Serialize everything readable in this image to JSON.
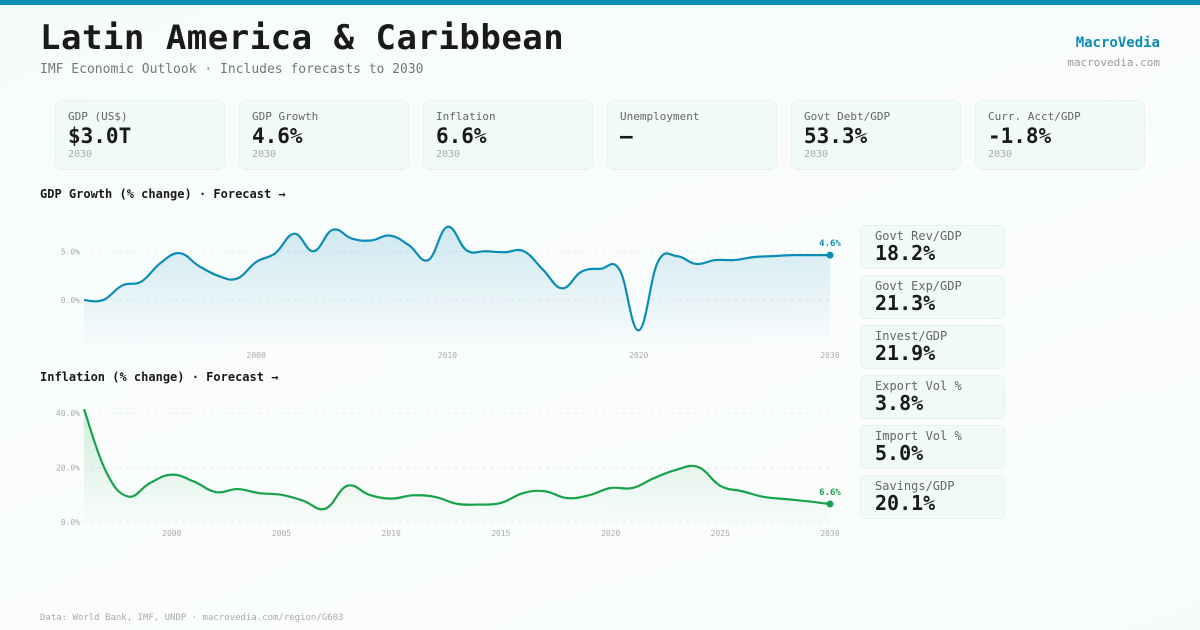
{
  "header": {
    "title": "Latin America & Caribbean",
    "subtitle": "IMF Economic Outlook · Includes forecasts to 2030",
    "brand": "MacroVedia",
    "brand_url": "macrovedia.com"
  },
  "kpis": [
    {
      "label": "GDP (US$)",
      "value": "$3.0T",
      "year": "2030"
    },
    {
      "label": "GDP Growth",
      "value": "4.6%",
      "year": "2030"
    },
    {
      "label": "Inflation",
      "value": "6.6%",
      "year": "2030"
    },
    {
      "label": "Unemployment",
      "value": "—",
      "year": ""
    },
    {
      "label": "Govt Debt/GDP",
      "value": "53.3%",
      "year": "2030"
    },
    {
      "label": "Curr. Acct/GDP",
      "value": "-1.8%",
      "year": "2030"
    }
  ],
  "side": [
    {
      "label": "Govt Rev/GDP",
      "value": "18.2%"
    },
    {
      "label": "Govt Exp/GDP",
      "value": "21.3%"
    },
    {
      "label": "Invest/GDP",
      "value": "21.9%"
    },
    {
      "label": "Export Vol %",
      "value": "3.8%"
    },
    {
      "label": "Import Vol %",
      "value": "5.0%"
    },
    {
      "label": "Savings/GDP",
      "value": "20.1%"
    }
  ],
  "footer": "Data: World Bank, IMF, UNDP · macrovedia.com/region/G603",
  "chart_data": [
    {
      "type": "area",
      "title": "GDP Growth (% change) · Forecast →",
      "color": "#0a8db5",
      "x_start": 1991,
      "values": [
        0.0,
        0.0,
        1.5,
        1.9,
        3.8,
        4.8,
        3.5,
        2.5,
        2.2,
        3.9,
        4.8,
        6.8,
        5.0,
        7.2,
        6.3,
        6.1,
        6.6,
        5.6,
        4.1,
        7.5,
        5.1,
        5.0,
        4.9,
        5.0,
        3.1,
        1.2,
        2.9,
        3.2,
        3.1,
        -3.1,
        3.9,
        4.5,
        3.7,
        4.1,
        4.1,
        4.4,
        4.5,
        4.6,
        4.6,
        4.6
      ],
      "ylim": [
        -4.6,
        8.2
      ],
      "yticks": [
        0,
        5
      ],
      "ytick_labels": [
        "0.0%",
        "5.0%"
      ],
      "xticks": [
        2000,
        2010,
        2020,
        2030
      ],
      "xtick_labels": [
        "2000",
        "2010",
        "2020",
        "2030"
      ],
      "end_label": "4.6%"
    },
    {
      "type": "area",
      "title": "Inflation (% change) · Forecast →",
      "color": "#16a34a",
      "x_start": 1996,
      "values": [
        41.5,
        18.6,
        9.4,
        14.3,
        17.4,
        14.9,
        11.0,
        12.1,
        10.6,
        10.0,
        7.8,
        4.9,
        13.3,
        10.0,
        8.6,
        9.8,
        9.2,
        6.7,
        6.4,
        7.0,
        10.6,
        11.3,
        8.8,
        9.8,
        12.5,
        12.5,
        16.2,
        19.2,
        20.2,
        13.3,
        11.3,
        9.2,
        8.4,
        7.6,
        6.6
      ],
      "ylim": [
        0,
        43
      ],
      "yticks": [
        0,
        20,
        40
      ],
      "ytick_labels": [
        "0.0%",
        "20.0%",
        "40.0%"
      ],
      "xticks": [
        2000,
        2005,
        2010,
        2015,
        2020,
        2025,
        2030
      ],
      "xtick_labels": [
        "2000",
        "2005",
        "2010",
        "2015",
        "2020",
        "2025",
        "2030"
      ],
      "end_label": "6.6%"
    }
  ]
}
